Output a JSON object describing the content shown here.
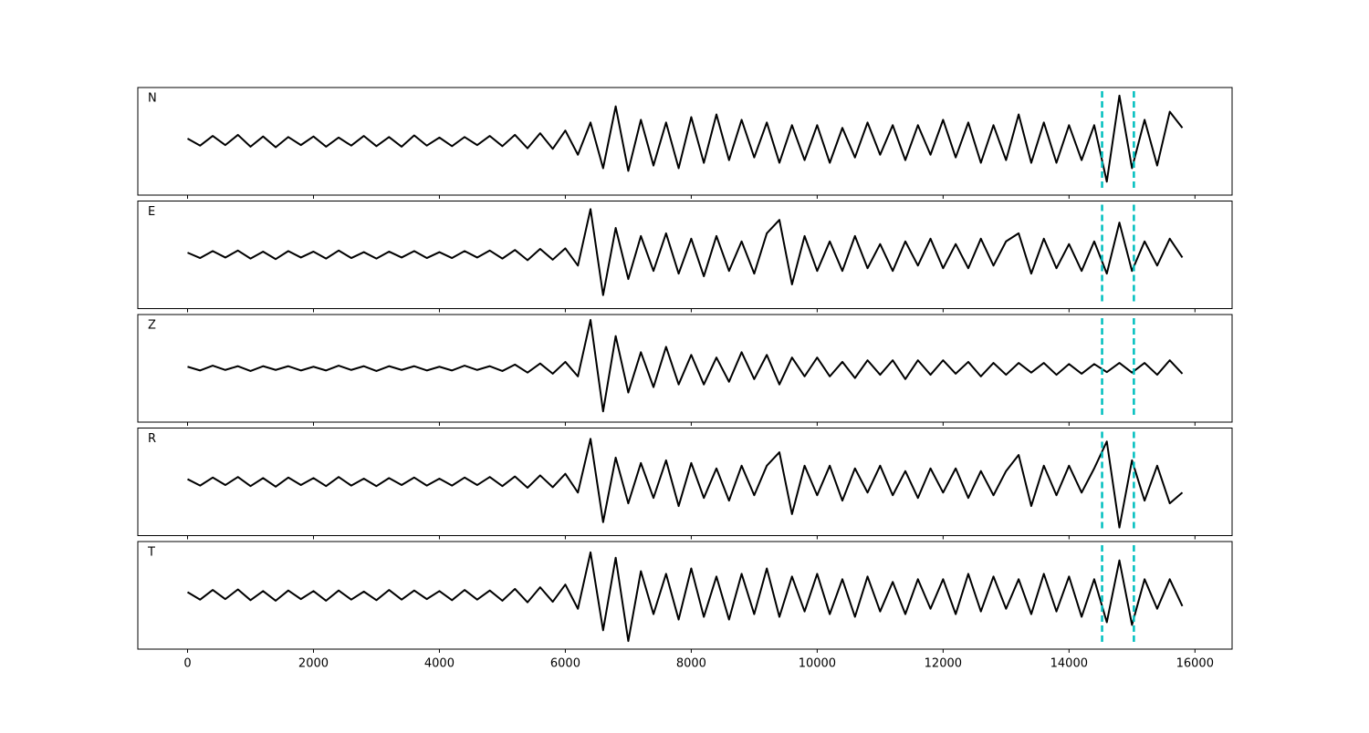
{
  "chart_data": {
    "type": "line",
    "x": [
      0,
      200,
      400,
      600,
      800,
      1000,
      1200,
      1400,
      1600,
      1800,
      2000,
      2200,
      2400,
      2600,
      2800,
      3000,
      3200,
      3400,
      3600,
      3800,
      4000,
      4200,
      4400,
      4600,
      4800,
      5000,
      5200,
      5400,
      5600,
      5800,
      6000,
      6200,
      6400,
      6600,
      6800,
      7000,
      7200,
      7400,
      7600,
      7800,
      8000,
      8200,
      8400,
      8600,
      8800,
      9000,
      9200,
      9400,
      9600,
      9800,
      10000,
      10200,
      10400,
      10600,
      10800,
      11000,
      11200,
      11400,
      11600,
      11800,
      12000,
      12200,
      12400,
      12600,
      12800,
      13000,
      13200,
      13400,
      13600,
      13800,
      14000,
      14200,
      14400,
      14600,
      14800,
      15000,
      15200,
      15400,
      15600,
      15800
    ],
    "series": [
      {
        "name": "N",
        "color": "#000000",
        "values": [
          0.05,
          -0.08,
          0.1,
          -0.07,
          0.12,
          -0.1,
          0.09,
          -0.11,
          0.08,
          -0.07,
          0.09,
          -0.1,
          0.07,
          -0.08,
          0.1,
          -0.09,
          0.08,
          -0.1,
          0.11,
          -0.08,
          0.07,
          -0.09,
          0.08,
          -0.07,
          0.1,
          -0.09,
          0.12,
          -0.13,
          0.15,
          -0.14,
          0.2,
          -0.25,
          0.35,
          -0.5,
          0.65,
          -0.55,
          0.4,
          -0.45,
          0.35,
          -0.5,
          0.45,
          -0.4,
          0.5,
          -0.35,
          0.4,
          -0.3,
          0.35,
          -0.4,
          0.3,
          -0.35,
          0.3,
          -0.4,
          0.25,
          -0.3,
          0.35,
          -0.25,
          0.3,
          -0.35,
          0.3,
          -0.25,
          0.4,
          -0.3,
          0.35,
          -0.4,
          0.3,
          -0.35,
          0.5,
          -0.4,
          0.35,
          -0.4,
          0.3,
          -0.35,
          0.3,
          -0.75,
          0.85,
          -0.5,
          0.4,
          -0.45,
          0.55,
          0.25
        ]
      },
      {
        "name": "E",
        "color": "#000000",
        "values": [
          0.04,
          -0.06,
          0.07,
          -0.05,
          0.08,
          -0.07,
          0.06,
          -0.08,
          0.07,
          -0.05,
          0.06,
          -0.07,
          0.08,
          -0.06,
          0.05,
          -0.07,
          0.06,
          -0.05,
          0.07,
          -0.06,
          0.05,
          -0.06,
          0.07,
          -0.05,
          0.08,
          -0.07,
          0.09,
          -0.1,
          0.11,
          -0.09,
          0.12,
          -0.2,
          0.85,
          -0.75,
          0.5,
          -0.45,
          0.35,
          -0.3,
          0.4,
          -0.35,
          0.3,
          -0.4,
          0.35,
          -0.3,
          0.25,
          -0.35,
          0.4,
          0.65,
          -0.55,
          0.35,
          -0.3,
          0.25,
          -0.3,
          0.35,
          -0.25,
          0.2,
          -0.3,
          0.25,
          -0.2,
          0.3,
          -0.25,
          0.2,
          -0.25,
          0.3,
          -0.2,
          0.25,
          0.4,
          -0.35,
          0.3,
          -0.25,
          0.2,
          -0.3,
          0.25,
          -0.35,
          0.6,
          -0.3,
          0.25,
          -0.2,
          0.3,
          -0.05
        ]
      },
      {
        "name": "Z",
        "color": "#000000",
        "values": [
          0.03,
          -0.04,
          0.05,
          -0.03,
          0.04,
          -0.05,
          0.04,
          -0.03,
          0.04,
          -0.04,
          0.03,
          -0.04,
          0.05,
          -0.03,
          0.04,
          -0.05,
          0.04,
          -0.03,
          0.04,
          -0.04,
          0.03,
          -0.04,
          0.05,
          -0.03,
          0.04,
          -0.05,
          0.07,
          -0.08,
          0.09,
          -0.1,
          0.12,
          -0.15,
          0.9,
          -0.8,
          0.6,
          -0.45,
          0.3,
          -0.35,
          0.4,
          -0.3,
          0.25,
          -0.3,
          0.2,
          -0.25,
          0.3,
          -0.2,
          0.25,
          -0.3,
          0.2,
          -0.15,
          0.2,
          -0.15,
          0.12,
          -0.18,
          0.15,
          -0.12,
          0.15,
          -0.2,
          0.15,
          -0.12,
          0.15,
          -0.1,
          0.12,
          -0.15,
          0.1,
          -0.12,
          0.1,
          -0.08,
          0.1,
          -0.12,
          0.08,
          -0.1,
          0.08,
          -0.07,
          0.1,
          -0.08,
          0.1,
          -0.12,
          0.15,
          -0.1
        ]
      },
      {
        "name": "R",
        "color": "#000000",
        "values": [
          0.05,
          -0.07,
          0.08,
          -0.06,
          0.09,
          -0.08,
          0.07,
          -0.09,
          0.08,
          -0.06,
          0.07,
          -0.08,
          0.09,
          -0.07,
          0.06,
          -0.08,
          0.07,
          -0.06,
          0.08,
          -0.07,
          0.06,
          -0.07,
          0.08,
          -0.06,
          0.09,
          -0.08,
          0.1,
          -0.11,
          0.12,
          -0.1,
          0.15,
          -0.2,
          0.8,
          -0.75,
          0.45,
          -0.4,
          0.35,
          -0.3,
          0.4,
          -0.45,
          0.35,
          -0.3,
          0.25,
          -0.35,
          0.3,
          -0.25,
          0.3,
          0.55,
          -0.6,
          0.3,
          -0.25,
          0.3,
          -0.35,
          0.25,
          -0.2,
          0.3,
          -0.25,
          0.2,
          -0.3,
          0.25,
          -0.2,
          0.25,
          -0.3,
          0.2,
          -0.25,
          0.2,
          0.5,
          -0.45,
          0.3,
          -0.25,
          0.3,
          -0.2,
          0.25,
          0.75,
          -0.85,
          0.4,
          -0.35,
          0.3,
          -0.4,
          -0.2
        ]
      },
      {
        "name": "T",
        "color": "#000000",
        "values": [
          0.06,
          -0.08,
          0.1,
          -0.07,
          0.11,
          -0.09,
          0.08,
          -0.1,
          0.09,
          -0.07,
          0.08,
          -0.1,
          0.09,
          -0.08,
          0.07,
          -0.09,
          0.1,
          -0.08,
          0.09,
          -0.07,
          0.08,
          -0.09,
          0.1,
          -0.08,
          0.09,
          -0.1,
          0.12,
          -0.13,
          0.15,
          -0.12,
          0.2,
          -0.25,
          0.8,
          -0.65,
          0.7,
          -0.85,
          0.45,
          -0.35,
          0.4,
          -0.45,
          0.5,
          -0.4,
          0.35,
          -0.45,
          0.4,
          -0.35,
          0.5,
          -0.4,
          0.35,
          -0.3,
          0.4,
          -0.35,
          0.3,
          -0.4,
          0.35,
          -0.3,
          0.25,
          -0.35,
          0.3,
          -0.25,
          0.3,
          -0.35,
          0.4,
          -0.3,
          0.35,
          -0.25,
          0.3,
          -0.35,
          0.4,
          -0.3,
          0.35,
          -0.4,
          0.3,
          -0.5,
          0.65,
          -0.55,
          0.3,
          -0.25,
          0.3,
          -0.2
        ]
      }
    ],
    "xlim": [
      -790,
      16590
    ],
    "xticks": [
      0,
      2000,
      4000,
      6000,
      8000,
      10000,
      12000,
      14000,
      16000
    ],
    "ylim": [
      -1,
      1
    ],
    "vlines": [
      14525,
      15030
    ],
    "vline_color": "#00bfbf",
    "vline_style": "dashed"
  }
}
